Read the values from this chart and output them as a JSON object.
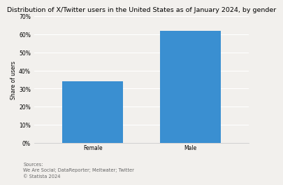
{
  "title": "Distribution of X/Twitter users in the United States as of January 2024, by gender",
  "categories": [
    "Female",
    "Male"
  ],
  "values": [
    34,
    62
  ],
  "bar_color": "#3a8fd1",
  "ylabel": "Share of users",
  "ylim": [
    0,
    70
  ],
  "yticks": [
    0,
    10,
    20,
    30,
    40,
    50,
    60,
    70
  ],
  "ytick_labels": [
    "0%",
    "10%",
    "20%",
    "30%",
    "40%",
    "50%",
    "60%",
    "70%"
  ],
  "source_text": "Sources:\nWe Are Social; DataReporter; Meltwater; Twitter\n© Statista 2024",
  "title_fontsize": 6.8,
  "label_fontsize": 5.5,
  "tick_fontsize": 5.5,
  "source_fontsize": 4.8,
  "bar_width": 0.62,
  "background_color": "#f2f0ed",
  "grid_color": "#ffffff",
  "spine_color": "#cccccc"
}
